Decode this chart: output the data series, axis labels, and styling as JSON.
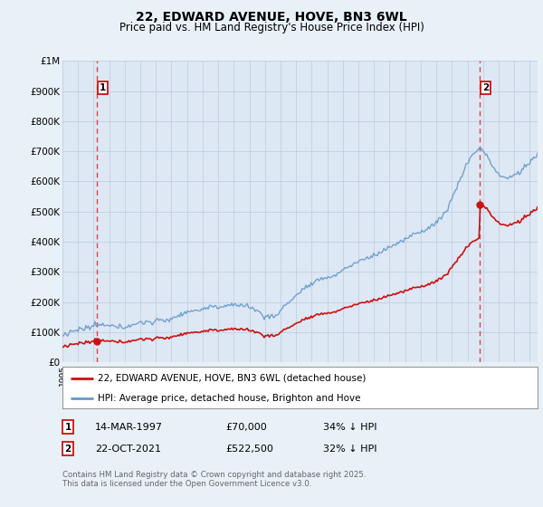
{
  "title": "22, EDWARD AVENUE, HOVE, BN3 6WL",
  "subtitle": "Price paid vs. HM Land Registry's House Price Index (HPI)",
  "background_color": "#e8f0f8",
  "plot_bg_color": "#dde8f4",
  "ylim": [
    0,
    1000000
  ],
  "yticks": [
    0,
    100000,
    200000,
    300000,
    400000,
    500000,
    600000,
    700000,
    800000,
    900000,
    1000000
  ],
  "ytick_labels": [
    "£0",
    "£100K",
    "£200K",
    "£300K",
    "£400K",
    "£500K",
    "£600K",
    "£700K",
    "£800K",
    "£900K",
    "£1M"
  ],
  "sale1": {
    "date_num": 1997.21,
    "price": 70000,
    "label": "1",
    "date_str": "14-MAR-1997",
    "price_str": "£70,000",
    "hpi_str": "34% ↓ HPI"
  },
  "sale2": {
    "date_num": 2021.81,
    "price": 522500,
    "label": "2",
    "date_str": "22-OCT-2021",
    "price_str": "£522,500",
    "hpi_str": "32% ↓ HPI"
  },
  "line_red_color": "#cc1111",
  "line_blue_color": "#6699cc",
  "dashed_color": "#dd3333",
  "grid_color": "#c0d0e0",
  "legend_label_red": "22, EDWARD AVENUE, HOVE, BN3 6WL (detached house)",
  "legend_label_blue": "HPI: Average price, detached house, Brighton and Hove",
  "footnote": "Contains HM Land Registry data © Crown copyright and database right 2025.\nThis data is licensed under the Open Government Licence v3.0.",
  "xlim_start": 1995.0,
  "xlim_end": 2025.5
}
